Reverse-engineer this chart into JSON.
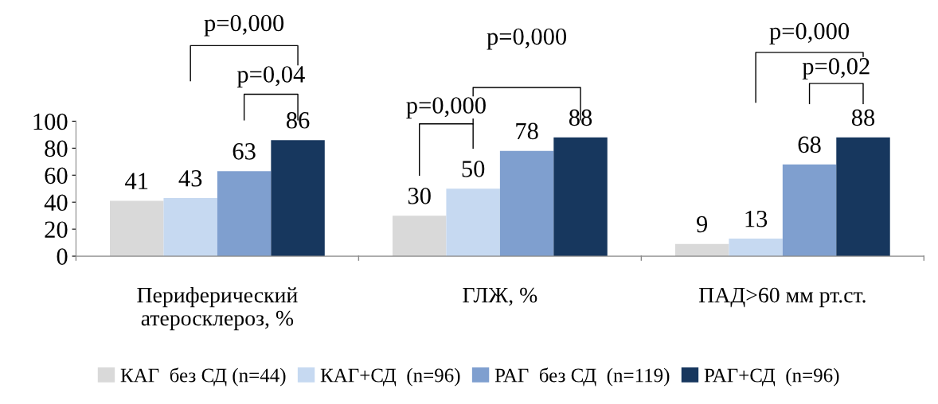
{
  "chart_data": {
    "type": "bar",
    "categories": [
      "Периферический\nатеросклероз, %",
      "ГЛЖ, %",
      "ПАД>60 мм рт.ст."
    ],
    "series": [
      {
        "name": "КАГ  без СД (n=44)",
        "color": "#d9d9d9",
        "values": [
          41,
          30,
          9
        ]
      },
      {
        "name": "КАГ+СД  (n=96)",
        "color": "#c6d9f1",
        "values": [
          43,
          50,
          13
        ]
      },
      {
        "name": "РАГ  без СД  (n=119)",
        "color": "#7f9fcf",
        "values": [
          63,
          78,
          68
        ]
      },
      {
        "name": "РАГ+СД  (n=96)",
        "color": "#17375e",
        "values": [
          86,
          88,
          88
        ]
      }
    ],
    "ylim": [
      0,
      100
    ],
    "yticks": [
      0,
      20,
      40,
      60,
      80,
      100
    ],
    "data_labels": true,
    "grid": false,
    "legend": "bottom",
    "annotations": [
      "p=0,000",
      "p=0,04",
      "p=0,000",
      "p=0,000",
      "p=0,000",
      "p=0,02"
    ]
  }
}
